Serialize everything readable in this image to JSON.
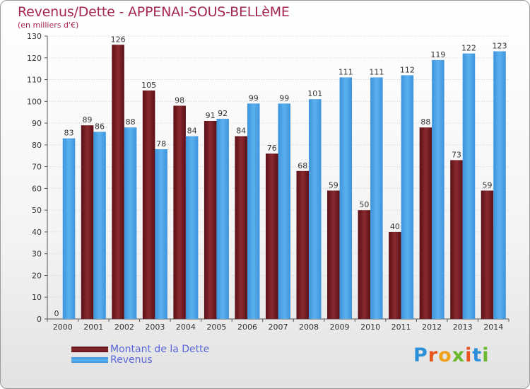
{
  "header": {
    "title": "Revenus/Dette - APPENAI-SOUS-BELLèME",
    "subtitle": "(en milliers d'€)"
  },
  "legend": {
    "items": [
      {
        "label": "Montant de la Dette",
        "color": "#7a1a22"
      },
      {
        "label": "Revenus",
        "color": "#4a9ee0"
      }
    ]
  },
  "logo": {
    "text": "Proxiti",
    "colors": [
      "#2b8fd8",
      "#e8541e",
      "#f0a21c",
      "#6cb82c",
      "#e8541e",
      "#2b8fd8",
      "#6cb82c"
    ]
  },
  "chart_data": {
    "type": "bar",
    "title": "Revenus/Dette - APPENAI-SOUS-BELLèME",
    "ylabel": "(en milliers d'€)",
    "ylim": [
      0,
      130
    ],
    "yticks": [
      0,
      10,
      20,
      30,
      40,
      50,
      60,
      70,
      80,
      90,
      100,
      110,
      120,
      130
    ],
    "grid": true,
    "legend_position": "bottom-left",
    "categories": [
      "2000",
      "2001",
      "2002",
      "2003",
      "2004",
      "2005",
      "2006",
      "2007",
      "2008",
      "2009",
      "2010",
      "2011",
      "2012",
      "2013",
      "2014"
    ],
    "series": [
      {
        "name": "Montant de la Dette",
        "color": "#7a1a22",
        "values": [
          0,
          89,
          126,
          105,
          98,
          91,
          84,
          76,
          68,
          59,
          50,
          40,
          88,
          73,
          59
        ]
      },
      {
        "name": "Revenus",
        "color": "#4a9ee0",
        "values": [
          83,
          86,
          88,
          78,
          84,
          92,
          99,
          99,
          101,
          111,
          111,
          112,
          119,
          122,
          123
        ]
      }
    ]
  }
}
